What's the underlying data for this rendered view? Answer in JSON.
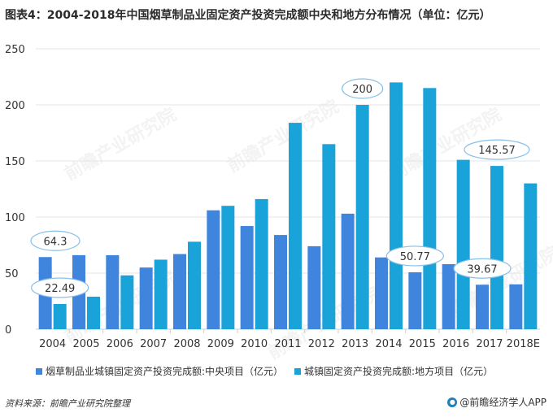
{
  "title": "图表4：2004-2018年中国烟草制品业固定资产投资完成额中央和地方分布情况（单位：亿元）",
  "source": "资料来源：前瞻产业研究院整理",
  "brand": {
    "icon": "logo-icon",
    "label": "@前瞻经济学人APP"
  },
  "watermark": "前瞻产业研究院",
  "colors": {
    "central": "#3f85dd",
    "local": "#1aa3d8",
    "grid": "#e6e6e6",
    "callout_border": "#88bfe7",
    "text": "#333333"
  },
  "chart_data": {
    "type": "bar",
    "title": "图表4：2004-2018年中国烟草制品业固定资产投资完成额中央和地方分布情况（单位：亿元）",
    "xlabel": "",
    "ylabel": "",
    "ylim": [
      0,
      250
    ],
    "yticks": [
      0,
      50,
      100,
      150,
      200,
      250
    ],
    "grid": true,
    "legend_position": "bottom",
    "categories": [
      "2004",
      "2005",
      "2006",
      "2007",
      "2008",
      "2009",
      "2010",
      "2011",
      "2012",
      "2013",
      "2014",
      "2015",
      "2016",
      "2017",
      "2018E"
    ],
    "series": [
      {
        "name": "烟草制品业城镇固定资产投资完成额:中央项目（亿元）",
        "values": [
          64.3,
          66,
          66,
          55,
          67,
          106,
          92,
          84,
          74,
          103,
          64,
          50.77,
          58,
          39.67,
          40
        ]
      },
      {
        "name": "城镇固定资产投资完成额:地方项目（亿元）",
        "values": [
          22.49,
          29,
          48,
          62,
          78,
          110,
          116,
          184,
          165,
          200,
          220,
          215,
          151,
          145.57,
          130
        ]
      }
    ],
    "callouts": [
      {
        "category": "2004",
        "series": 0,
        "label": "64.3"
      },
      {
        "category": "2004",
        "series": 1,
        "label": "22.49"
      },
      {
        "category": "2013",
        "series": 1,
        "label": "200"
      },
      {
        "category": "2015",
        "series": 0,
        "label": "50.77"
      },
      {
        "category": "2017",
        "series": 0,
        "label": "39.67"
      },
      {
        "category": "2017",
        "series": 1,
        "label": "145.57"
      }
    ]
  }
}
